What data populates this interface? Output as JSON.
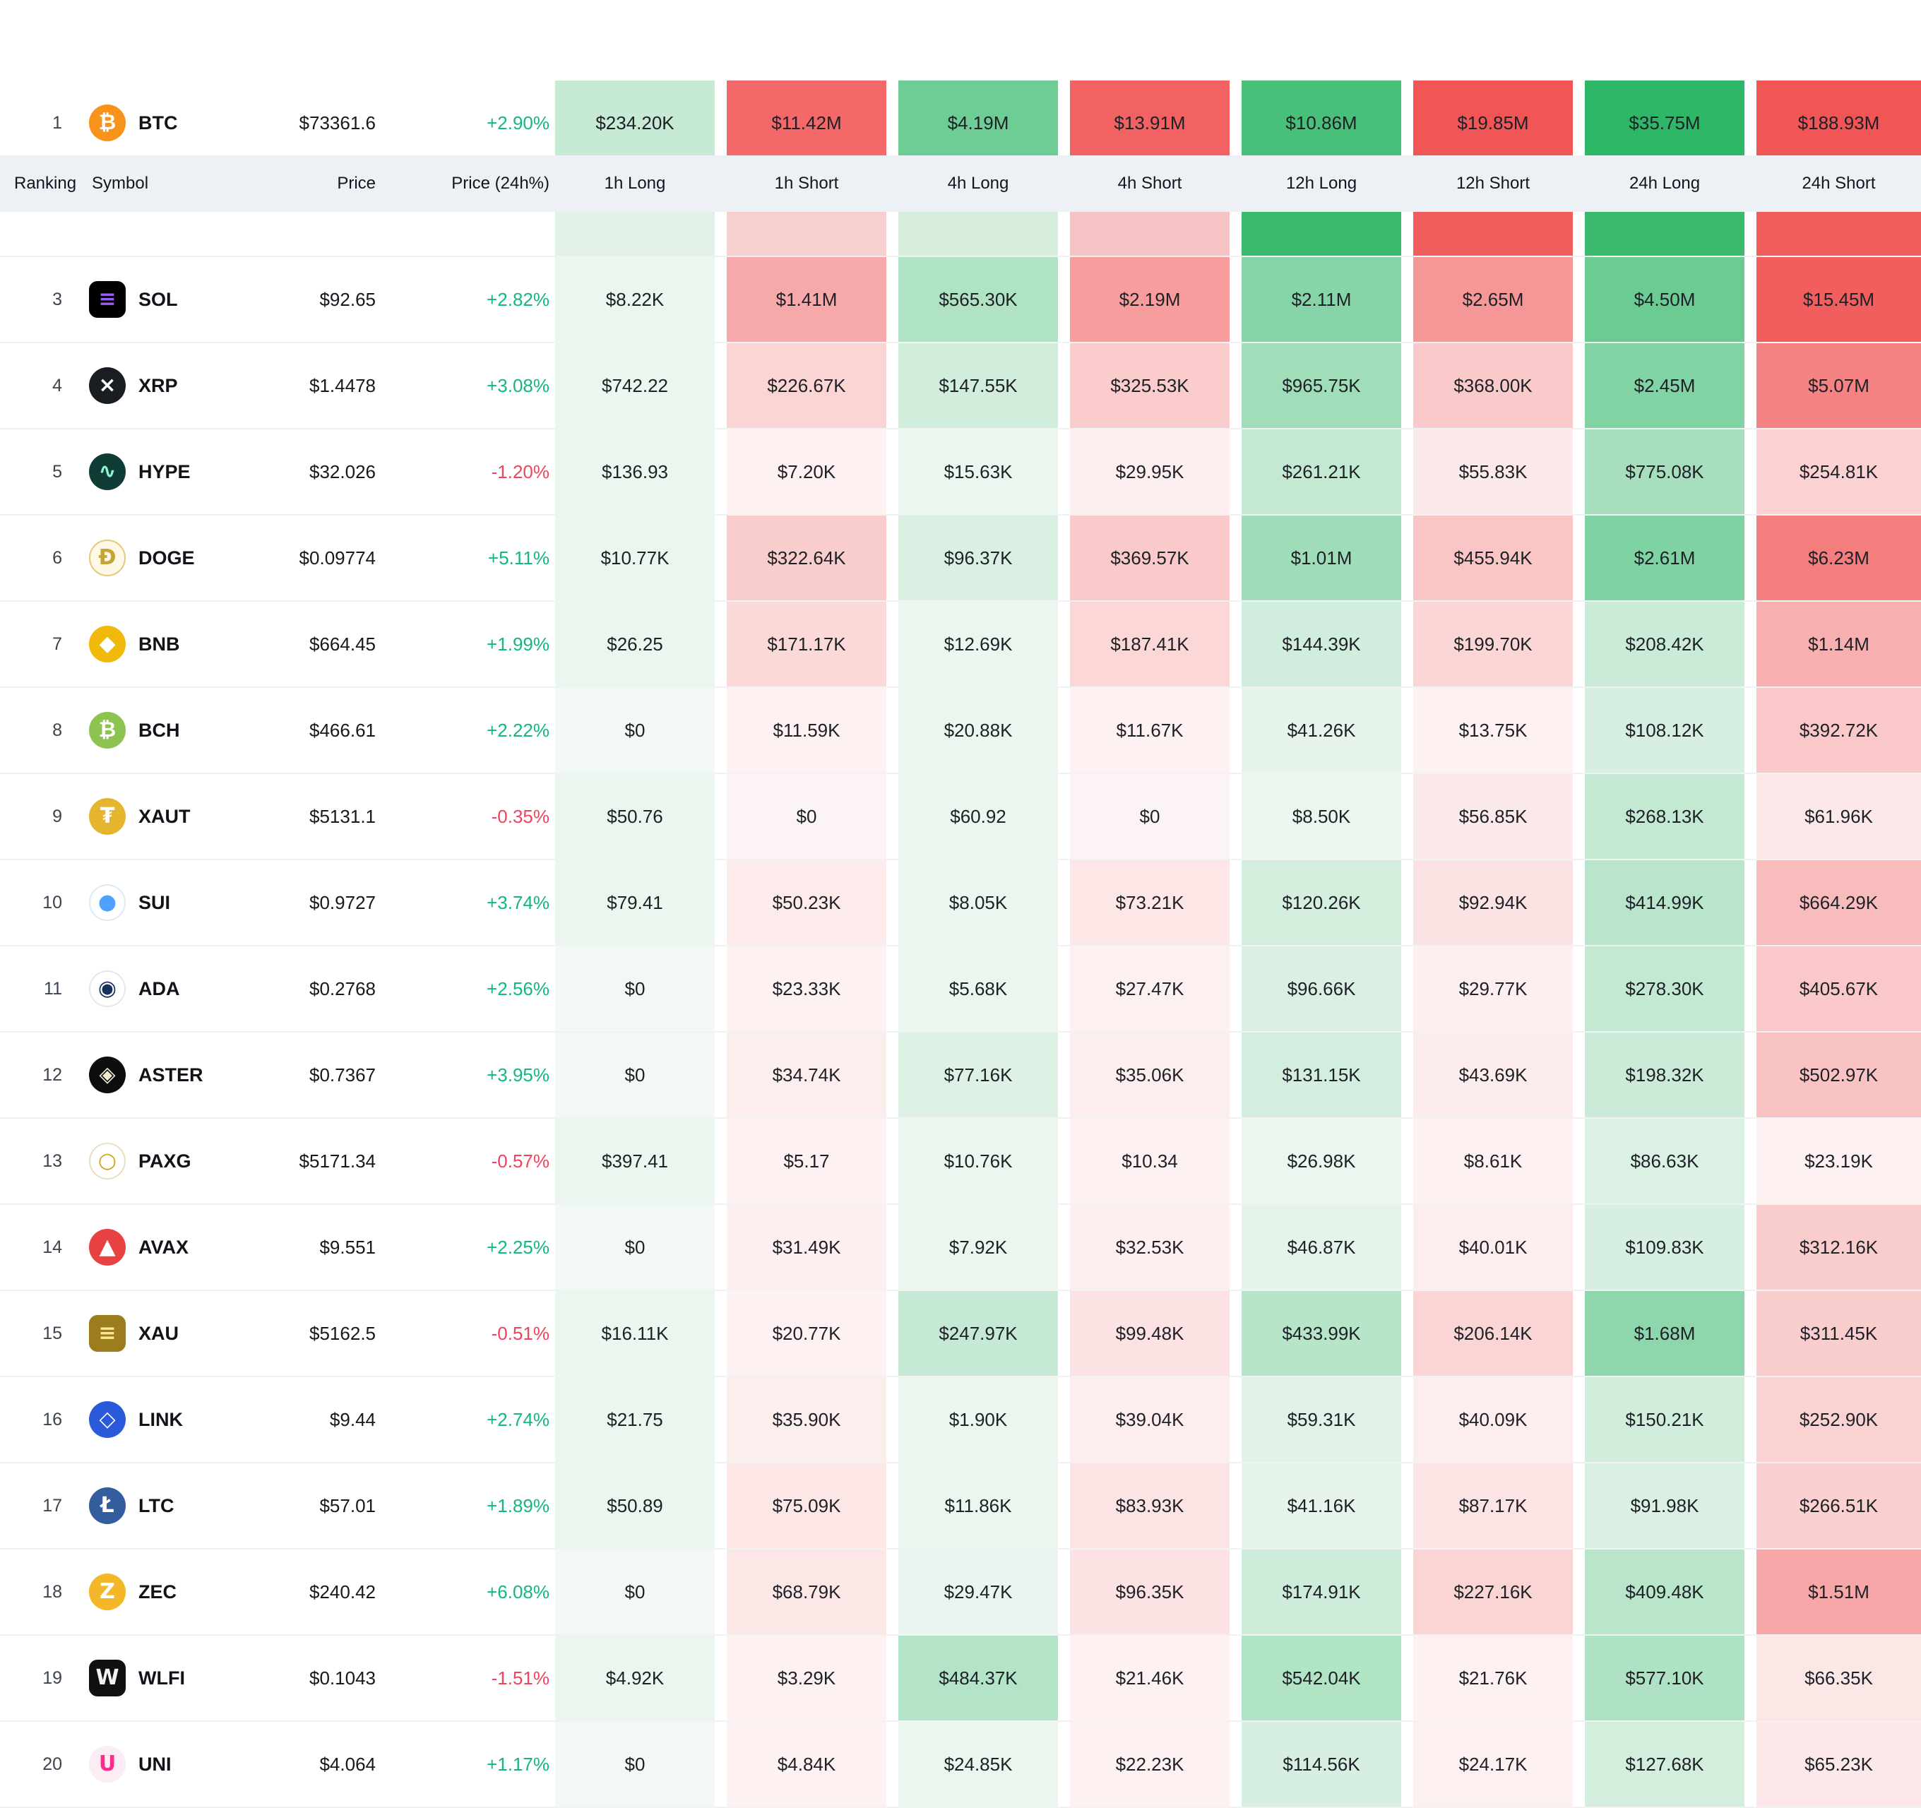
{
  "colors": {
    "header_bg": "#edf1f5",
    "positive": "#14b87d",
    "negative": "#f1435f",
    "long_min": "#ebf6ef",
    "long_max": "#2eb767",
    "short_min": "#fdf1f1",
    "short_max": "#f15555",
    "zero_long": "#f2f8f4",
    "zero_short": "#fcf4f4"
  },
  "table": {
    "columns": [
      {
        "key": "ranking",
        "label": "Ranking"
      },
      {
        "key": "symbol",
        "label": "Symbol"
      },
      {
        "key": "price",
        "label": "Price"
      },
      {
        "key": "change",
        "label": "Price (24h%)"
      },
      {
        "key": "h1_long",
        "label": "1h Long",
        "side": "long"
      },
      {
        "key": "h1_short",
        "label": "1h Short",
        "side": "short"
      },
      {
        "key": "h4_long",
        "label": "4h Long",
        "side": "long"
      },
      {
        "key": "h4_short",
        "label": "4h Short",
        "side": "short"
      },
      {
        "key": "h12_long",
        "label": "12h Long",
        "side": "long"
      },
      {
        "key": "h12_short",
        "label": "12h Short",
        "side": "short"
      },
      {
        "key": "h24_long",
        "label": "24h Long",
        "side": "long"
      },
      {
        "key": "h24_short",
        "label": "24h Short",
        "side": "short"
      }
    ],
    "hidden_row": {
      "cell_colors": [
        "#e2f1e7",
        "#f7cfcf",
        "#d7eedf",
        "#f5c3c3",
        "#3bba6d",
        "#f15d5d",
        "#3bba6d",
        "#f15d5d"
      ]
    },
    "rows": [
      {
        "ranking": 1,
        "symbol": "BTC",
        "price": "$73361.6",
        "change": "+2.90%",
        "icon": {
          "glyph": "₿",
          "bg": "#f7931a",
          "fg": "#ffffff",
          "shape": "circle"
        },
        "values": [
          "$234.20K",
          "$11.42M",
          "$4.19M",
          "$13.91M",
          "$10.86M",
          "$19.85M",
          "$35.75M",
          "$188.93M"
        ]
      },
      {
        "ranking": 3,
        "symbol": "SOL",
        "price": "$92.65",
        "change": "+2.82%",
        "icon": {
          "glyph": "≡",
          "bg": "#000000",
          "fg": "#9b5cf6",
          "shape": "square"
        },
        "values": [
          "$8.22K",
          "$1.41M",
          "$565.30K",
          "$2.19M",
          "$2.11M",
          "$2.65M",
          "$4.50M",
          "$15.45M"
        ]
      },
      {
        "ranking": 4,
        "symbol": "XRP",
        "price": "$1.4478",
        "change": "+3.08%",
        "icon": {
          "glyph": "×",
          "bg": "#1a1d21",
          "fg": "#ffffff",
          "shape": "circle"
        },
        "values": [
          "$742.22",
          "$226.67K",
          "$147.55K",
          "$325.53K",
          "$965.75K",
          "$368.00K",
          "$2.45M",
          "$5.07M"
        ]
      },
      {
        "ranking": 5,
        "symbol": "HYPE",
        "price": "$32.026",
        "change": "-1.20%",
        "icon": {
          "glyph": "∿",
          "bg": "#0f3d36",
          "fg": "#8df5d3",
          "shape": "circle"
        },
        "values": [
          "$136.93",
          "$7.20K",
          "$15.63K",
          "$29.95K",
          "$261.21K",
          "$55.83K",
          "$775.08K",
          "$254.81K"
        ]
      },
      {
        "ranking": 6,
        "symbol": "DOGE",
        "price": "$0.09774",
        "change": "+5.11%",
        "icon": {
          "glyph": "Ð",
          "bg": "#fff8e7",
          "fg": "#c3a634",
          "border": "#e3c878",
          "shape": "circle"
        },
        "values": [
          "$10.77K",
          "$322.64K",
          "$96.37K",
          "$369.57K",
          "$1.01M",
          "$455.94K",
          "$2.61M",
          "$6.23M"
        ]
      },
      {
        "ranking": 7,
        "symbol": "BNB",
        "price": "$664.45",
        "change": "+1.99%",
        "icon": {
          "glyph": "◆",
          "bg": "#f0b90b",
          "fg": "#ffffff",
          "shape": "circle"
        },
        "values": [
          "$26.25",
          "$171.17K",
          "$12.69K",
          "$187.41K",
          "$144.39K",
          "$199.70K",
          "$208.42K",
          "$1.14M"
        ]
      },
      {
        "ranking": 8,
        "symbol": "BCH",
        "price": "$466.61",
        "change": "+2.22%",
        "icon": {
          "glyph": "₿",
          "bg": "#8dc351",
          "fg": "#ffffff",
          "shape": "circle"
        },
        "values": [
          "$0",
          "$11.59K",
          "$20.88K",
          "$11.67K",
          "$41.26K",
          "$13.75K",
          "$108.12K",
          "$392.72K"
        ]
      },
      {
        "ranking": 9,
        "symbol": "XAUT",
        "price": "$5131.1",
        "change": "-0.35%",
        "icon": {
          "glyph": "₮",
          "bg": "#e5b52e",
          "fg": "#ffffff",
          "shape": "circle"
        },
        "values": [
          "$50.76",
          "$0",
          "$60.92",
          "$0",
          "$8.50K",
          "$56.85K",
          "$268.13K",
          "$61.96K"
        ]
      },
      {
        "ranking": 10,
        "symbol": "SUI",
        "price": "$0.9727",
        "change": "+3.74%",
        "icon": {
          "glyph": "●",
          "bg": "#ffffff",
          "fg": "#4da2ff",
          "border": "#dcebf8",
          "shape": "circle"
        },
        "values": [
          "$79.41",
          "$50.23K",
          "$8.05K",
          "$73.21K",
          "$120.26K",
          "$92.94K",
          "$414.99K",
          "$664.29K"
        ]
      },
      {
        "ranking": 11,
        "symbol": "ADA",
        "price": "$0.2768",
        "change": "+2.56%",
        "icon": {
          "glyph": "◉",
          "bg": "#ffffff",
          "fg": "#16325c",
          "border": "#e4e7ec",
          "shape": "circle"
        },
        "values": [
          "$0",
          "$23.33K",
          "$5.68K",
          "$27.47K",
          "$96.66K",
          "$29.77K",
          "$278.30K",
          "$405.67K"
        ]
      },
      {
        "ranking": 12,
        "symbol": "ASTER",
        "price": "$0.7367",
        "change": "+3.95%",
        "icon": {
          "glyph": "◈",
          "bg": "#0d0d10",
          "fg": "#f2e9cf",
          "shape": "circle"
        },
        "values": [
          "$0",
          "$34.74K",
          "$77.16K",
          "$35.06K",
          "$131.15K",
          "$43.69K",
          "$198.32K",
          "$502.97K"
        ]
      },
      {
        "ranking": 13,
        "symbol": "PAXG",
        "price": "$5171.34",
        "change": "-0.57%",
        "icon": {
          "glyph": "○",
          "bg": "#ffffff",
          "fg": "#cfa616",
          "border": "#eadfbe",
          "shape": "circle"
        },
        "values": [
          "$397.41",
          "$5.17",
          "$10.76K",
          "$10.34",
          "$26.98K",
          "$8.61K",
          "$86.63K",
          "$23.19K"
        ]
      },
      {
        "ranking": 14,
        "symbol": "AVAX",
        "price": "$9.551",
        "change": "+2.25%",
        "icon": {
          "glyph": "▲",
          "bg": "#e84142",
          "fg": "#ffffff",
          "shape": "circle"
        },
        "values": [
          "$0",
          "$31.49K",
          "$7.92K",
          "$32.53K",
          "$46.87K",
          "$40.01K",
          "$109.83K",
          "$312.16K"
        ]
      },
      {
        "ranking": 15,
        "symbol": "XAU",
        "price": "$5162.5",
        "change": "-0.51%",
        "icon": {
          "glyph": "≡",
          "bg": "#9c7d1d",
          "fg": "#ffe690",
          "shape": "square"
        },
        "values": [
          "$16.11K",
          "$20.77K",
          "$247.97K",
          "$99.48K",
          "$433.99K",
          "$206.14K",
          "$1.68M",
          "$311.45K"
        ]
      },
      {
        "ranking": 16,
        "symbol": "LINK",
        "price": "$9.44",
        "change": "+2.74%",
        "icon": {
          "glyph": "◇",
          "bg": "#2a5ada",
          "fg": "#ffffff",
          "shape": "circle"
        },
        "values": [
          "$21.75",
          "$35.90K",
          "$1.90K",
          "$39.04K",
          "$59.31K",
          "$40.09K",
          "$150.21K",
          "$252.90K"
        ]
      },
      {
        "ranking": 17,
        "symbol": "LTC",
        "price": "$57.01",
        "change": "+1.89%",
        "icon": {
          "glyph": "Ł",
          "bg": "#345d9d",
          "fg": "#ffffff",
          "shape": "circle"
        },
        "values": [
          "$50.89",
          "$75.09K",
          "$11.86K",
          "$83.93K",
          "$41.16K",
          "$87.17K",
          "$91.98K",
          "$266.51K"
        ]
      },
      {
        "ranking": 18,
        "symbol": "ZEC",
        "price": "$240.42",
        "change": "+6.08%",
        "icon": {
          "glyph": "Z",
          "bg": "#f4b728",
          "fg": "#ffffff",
          "shape": "circle"
        },
        "values": [
          "$0",
          "$68.79K",
          "$29.47K",
          "$96.35K",
          "$174.91K",
          "$227.16K",
          "$409.48K",
          "$1.51M"
        ]
      },
      {
        "ranking": 19,
        "symbol": "WLFI",
        "price": "$0.1043",
        "change": "-1.51%",
        "icon": {
          "glyph": "W",
          "bg": "#101010",
          "fg": "#f2f2f2",
          "shape": "square"
        },
        "values": [
          "$4.92K",
          "$3.29K",
          "$484.37K",
          "$21.46K",
          "$542.04K",
          "$21.76K",
          "$577.10K",
          "$66.35K"
        ]
      },
      {
        "ranking": 20,
        "symbol": "UNI",
        "price": "$4.064",
        "change": "+1.17%",
        "icon": {
          "glyph": "U",
          "bg": "#fcecf4",
          "fg": "#ff2d8a",
          "shape": "circle"
        },
        "values": [
          "$0",
          "$4.84K",
          "$24.85K",
          "$22.23K",
          "$114.56K",
          "$24.17K",
          "$127.68K",
          "$65.23K"
        ]
      }
    ]
  }
}
